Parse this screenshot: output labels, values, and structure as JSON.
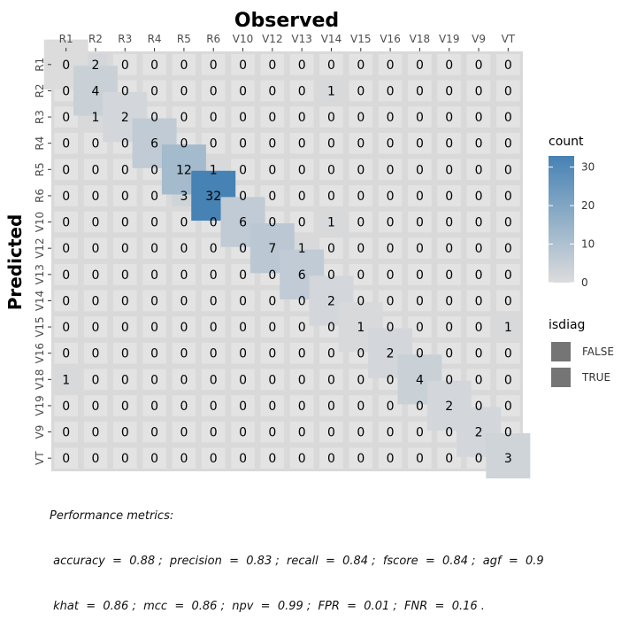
{
  "chart_data": {
    "type": "heatmap",
    "title": "Observed",
    "xlabel": "Observed",
    "ylabel": "Predicted",
    "x_categories": [
      "R1",
      "R2",
      "R3",
      "R4",
      "R5",
      "R6",
      "V10",
      "V12",
      "V13",
      "V14",
      "V15",
      "V16",
      "V18",
      "V19",
      "V9",
      "VT"
    ],
    "y_categories": [
      "R1",
      "R2",
      "R3",
      "R4",
      "R5",
      "R6",
      "V10",
      "V12",
      "V13",
      "V14",
      "V15",
      "V16",
      "V18",
      "V19",
      "V9",
      "VT"
    ],
    "matrix": [
      [
        0,
        2,
        0,
        0,
        0,
        0,
        0,
        0,
        0,
        0,
        0,
        0,
        0,
        0,
        0,
        0
      ],
      [
        0,
        4,
        0,
        0,
        0,
        0,
        0,
        0,
        0,
        1,
        0,
        0,
        0,
        0,
        0,
        0
      ],
      [
        0,
        1,
        2,
        0,
        0,
        0,
        0,
        0,
        0,
        0,
        0,
        0,
        0,
        0,
        0,
        0
      ],
      [
        0,
        0,
        0,
        6,
        0,
        0,
        0,
        0,
        0,
        0,
        0,
        0,
        0,
        0,
        0,
        0
      ],
      [
        0,
        0,
        0,
        0,
        12,
        1,
        0,
        0,
        0,
        0,
        0,
        0,
        0,
        0,
        0,
        0
      ],
      [
        0,
        0,
        0,
        0,
        3,
        32,
        0,
        0,
        0,
        0,
        0,
        0,
        0,
        0,
        0,
        0
      ],
      [
        0,
        0,
        0,
        0,
        0,
        0,
        6,
        0,
        0,
        1,
        0,
        0,
        0,
        0,
        0,
        0
      ],
      [
        0,
        0,
        0,
        0,
        0,
        0,
        0,
        7,
        1,
        0,
        0,
        0,
        0,
        0,
        0,
        0
      ],
      [
        0,
        0,
        0,
        0,
        0,
        0,
        0,
        0,
        6,
        0,
        0,
        0,
        0,
        0,
        0,
        0
      ],
      [
        0,
        0,
        0,
        0,
        0,
        0,
        0,
        0,
        0,
        2,
        0,
        0,
        0,
        0,
        0,
        0
      ],
      [
        0,
        0,
        0,
        0,
        0,
        0,
        0,
        0,
        0,
        0,
        1,
        0,
        0,
        0,
        0,
        1
      ],
      [
        0,
        0,
        0,
        0,
        0,
        0,
        0,
        0,
        0,
        0,
        0,
        2,
        0,
        0,
        0,
        0
      ],
      [
        1,
        0,
        0,
        0,
        0,
        0,
        0,
        0,
        0,
        0,
        0,
        0,
        4,
        0,
        0,
        0
      ],
      [
        0,
        0,
        0,
        0,
        0,
        0,
        0,
        0,
        0,
        0,
        0,
        0,
        0,
        2,
        0,
        0
      ],
      [
        0,
        0,
        0,
        0,
        0,
        0,
        0,
        0,
        0,
        0,
        0,
        0,
        0,
        0,
        2,
        0
      ],
      [
        0,
        0,
        0,
        0,
        0,
        0,
        0,
        0,
        0,
        0,
        0,
        0,
        0,
        0,
        0,
        3
      ]
    ],
    "color_legend": {
      "title": "count",
      "min": 0,
      "max": 32,
      "ticks": [
        0,
        10,
        20,
        30
      ],
      "low_color": "#dcdcdc",
      "high_color": "#4682b4"
    },
    "shape_legend": {
      "title": "isdiag",
      "entries": [
        "FALSE",
        "TRUE"
      ],
      "key_color": "#757575"
    },
    "panel_background": "#d9d9d9",
    "offdiag_tile_color": "#e3e3e3",
    "grid": false,
    "legend_position": "right"
  },
  "caption": {
    "line1": "Performance metrics:",
    "line2": " accuracy  =  0.88 ;  precision  =  0.83 ;  recall  =  0.84 ;  fscore  =  0.84 ;  agf  =  0.9",
    "line3": " khat  =  0.86 ;  mcc  =  0.86 ;  npv  =  0.99 ;  FPR  =  0.01 ;  FNR  =  0.16 ."
  }
}
